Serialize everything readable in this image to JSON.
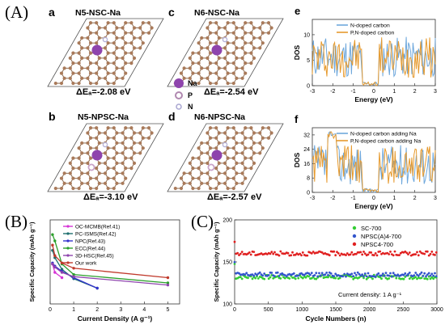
{
  "figure": {
    "label_A": "(A)",
    "label_B": "(B)",
    "label_C": "(C)"
  },
  "panelA": {
    "a": {
      "letter": "a",
      "title": "N5-NSC-Na",
      "energy": "ΔEₐ=-2.08 eV"
    },
    "b": {
      "letter": "b",
      "title": "N5-NPSC-Na",
      "energy": "ΔEₐ=-3.10 eV"
    },
    "c": {
      "letter": "c",
      "title": "N6-NSC-Na",
      "energy": "ΔEₐ=-2.54 eV"
    },
    "d": {
      "letter": "d",
      "title": "N6-NPSC-Na",
      "energy": "ΔEₐ=-2.57 eV"
    },
    "legend": {
      "na": "Na",
      "p": "P",
      "n": "N"
    },
    "colors": {
      "carbon": "#a97a5a",
      "bond": "#8b6a4f",
      "na": "#8e44ad",
      "p": "#c9a3c9",
      "n": "#b7b3d9"
    }
  },
  "chart_data": [
    {
      "id": "e",
      "type": "line",
      "letter": "e",
      "xlabel": "Energy (eV)",
      "ylabel": "DOS",
      "xlim": [
        -3,
        3
      ],
      "xticks": [
        "-3",
        "-2",
        "-1",
        "0",
        "1",
        "2",
        "3"
      ],
      "yticks": [
        "0",
        "5",
        "10"
      ],
      "series": [
        {
          "name": "N-doped carbon",
          "color": "#6fa8dc"
        },
        {
          "name": "P,N-doped carbon",
          "color": "#e69a2e"
        }
      ]
    },
    {
      "id": "f",
      "type": "line",
      "letter": "f",
      "xlabel": "Energy (eV)",
      "ylabel": "DOS",
      "xlim": [
        -3,
        3
      ],
      "xticks": [
        "-3",
        "-2",
        "-1",
        "0",
        "1",
        "2",
        "3"
      ],
      "yticks": [
        "0",
        "8",
        "16",
        "24",
        "32"
      ],
      "series": [
        {
          "name": "N-doped carbon adding Na",
          "color": "#6fa8dc"
        },
        {
          "name": "P,N-doped carbon adding Na",
          "color": "#e69a2e"
        }
      ]
    },
    {
      "id": "B",
      "type": "line",
      "xlabel": "Current Density (A g⁻¹)",
      "ylabel": "Specific Capacity (mAh g⁻¹)",
      "xlim": [
        0,
        5.5
      ],
      "ylim": [
        0,
        400
      ],
      "xticks": [
        "0",
        "1",
        "2",
        "3",
        "4",
        "5"
      ],
      "series": [
        {
          "name": "OC-MCMB(Ref.41)",
          "color": "#d633d6",
          "x": [
            0.1,
            0.2,
            0.5
          ],
          "y": [
            190,
            150,
            125
          ]
        },
        {
          "name": "PC-ISMS(Ref.42)",
          "color": "#1f6f6f",
          "x": [
            0.1,
            0.2,
            0.5,
            1,
            2
          ],
          "y": [
            255,
            220,
            165,
            120,
            75
          ]
        },
        {
          "name": "NPC(Ref.43)",
          "color": "#3333cc",
          "x": [
            0.1,
            0.2,
            0.5,
            1,
            2
          ],
          "y": [
            195,
            180,
            155,
            125,
            75
          ]
        },
        {
          "name": "ECC(Ref.44)",
          "color": "#2ca02c",
          "x": [
            0.1,
            0.2,
            0.5,
            1,
            5
          ],
          "y": [
            330,
            300,
            190,
            140,
            100
          ]
        },
        {
          "name": "3D-HSC(Ref.45)",
          "color": "#8e44ad",
          "x": [
            0.1,
            0.2,
            0.5,
            1,
            5
          ],
          "y": [
            190,
            175,
            150,
            130,
            90
          ]
        },
        {
          "name": "Our work",
          "color": "#c0392b",
          "x": [
            0.1,
            0.2,
            0.5,
            1,
            5
          ],
          "y": [
            280,
            230,
            195,
            170,
            125
          ]
        }
      ]
    },
    {
      "id": "C",
      "type": "scatter",
      "xlabel": "Cycle Numbers (n)",
      "ylabel": "Specific Capacity (mAh g⁻¹)",
      "xlim": [
        0,
        3000
      ],
      "ylim": [
        100,
        200
      ],
      "xticks": [
        "0",
        "500",
        "1000",
        "1500",
        "2000",
        "2500",
        "3000"
      ],
      "yticks": [
        "100",
        "150",
        "200"
      ],
      "annotation": "Current density:  1 A g⁻¹",
      "series": [
        {
          "name": "SC-700",
          "color": "#33cc33",
          "level": 132
        },
        {
          "name": "NPSC(A)4-700",
          "color": "#3355cc",
          "level": 135
        },
        {
          "name": "NPSC4-700",
          "color": "#e02020",
          "level": 160
        }
      ]
    }
  ]
}
